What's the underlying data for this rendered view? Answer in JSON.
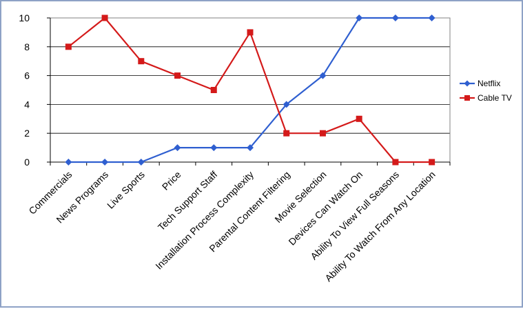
{
  "chart_data": {
    "type": "line",
    "title": "",
    "xlabel": "",
    "ylabel": "",
    "categories": [
      "Commercials",
      "News Programs",
      "Live Sports",
      "Price",
      "Tech Support Staff",
      "Installation Process Complexity",
      "Parental Content Filtering",
      "Movie Selection",
      "Devices Can Watch On",
      "Ability To View Full Seasons",
      "Ability To Watch From Any Location"
    ],
    "ylim": [
      0,
      10
    ],
    "yticks": [
      0,
      2,
      4,
      6,
      8,
      10
    ],
    "grid": true,
    "legend": "right",
    "series": [
      {
        "name": "Netflix",
        "color": "#2f5fd0",
        "marker": "diamond",
        "values": [
          0,
          0,
          0,
          1,
          1,
          1,
          4,
          6,
          10,
          10,
          10
        ]
      },
      {
        "name": "Cable TV",
        "color": "#d41a1a",
        "marker": "square",
        "values": [
          8,
          10,
          7,
          6,
          5,
          9,
          2,
          2,
          3,
          0,
          0
        ]
      }
    ]
  }
}
